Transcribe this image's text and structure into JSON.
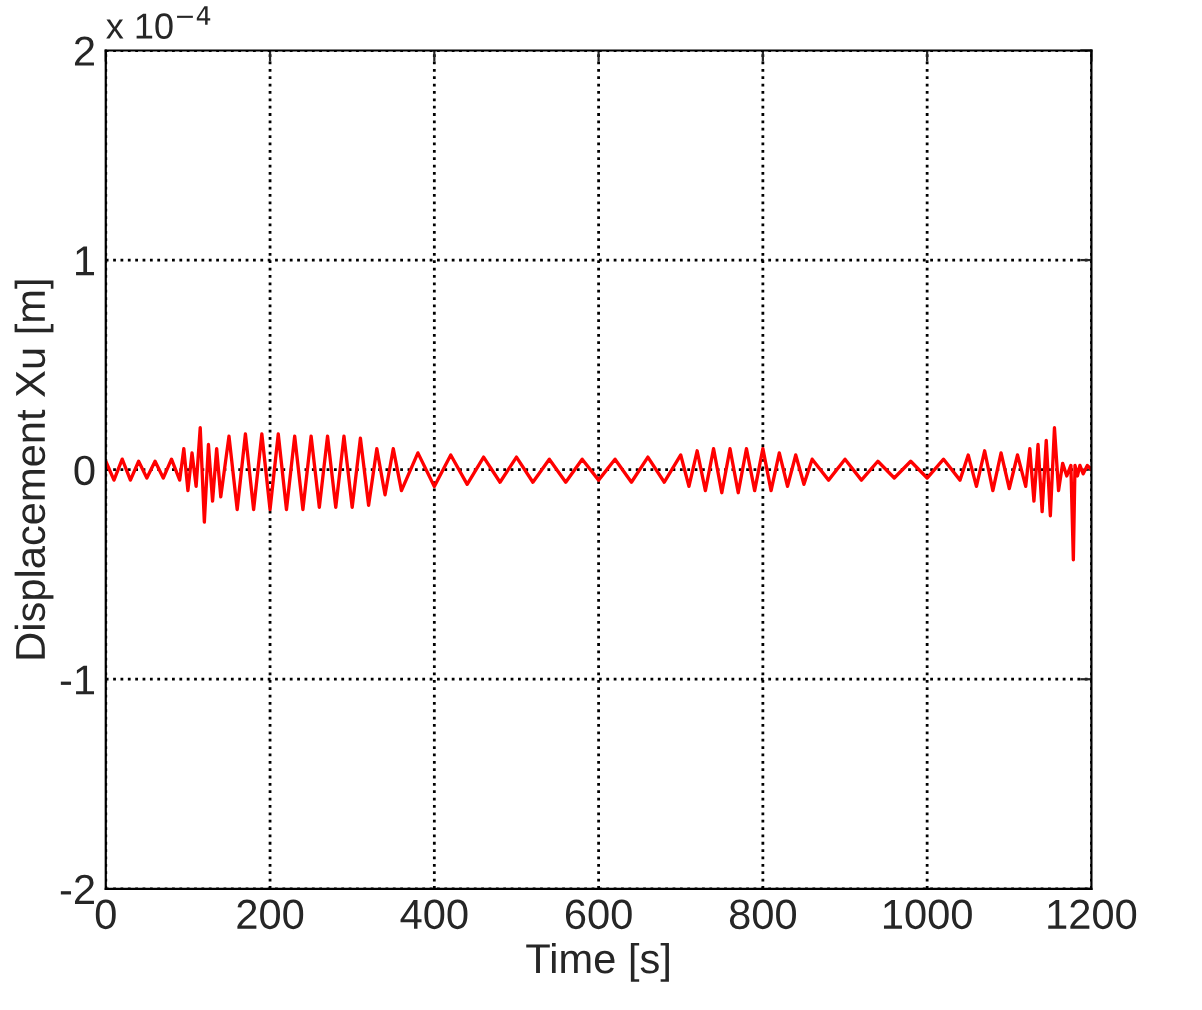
{
  "chart_data": {
    "type": "line",
    "xlabel": "Time [s]",
    "ylabel": "Displacement Xu [m]",
    "annotations": [
      "x 10$^{−4}$"
    ],
    "xlim": [
      0,
      1200
    ],
    "ylim": [
      -2,
      2
    ],
    "xticks": [
      0,
      200,
      400,
      600,
      800,
      1000,
      1200
    ],
    "yticks": [
      -2,
      -1,
      0,
      1,
      2
    ],
    "grid": true,
    "line_style": "solid",
    "marker": "none",
    "series": [
      {
        "color": "#ff0000",
        "x": [
          0,
          10,
          20,
          30,
          40,
          50,
          60,
          70,
          80,
          90,
          95,
          100,
          105,
          110,
          115,
          120,
          125,
          130,
          135,
          140,
          150,
          160,
          170,
          180,
          190,
          200,
          210,
          220,
          230,
          240,
          250,
          260,
          270,
          280,
          290,
          300,
          310,
          320,
          330,
          340,
          350,
          360,
          380,
          400,
          420,
          440,
          460,
          480,
          500,
          520,
          540,
          560,
          580,
          600,
          620,
          640,
          660,
          680,
          700,
          710,
          720,
          730,
          740,
          750,
          760,
          770,
          780,
          790,
          800,
          810,
          820,
          830,
          840,
          850,
          860,
          880,
          900,
          920,
          940,
          960,
          980,
          1000,
          1020,
          1040,
          1050,
          1060,
          1070,
          1080,
          1090,
          1100,
          1110,
          1120,
          1125,
          1130,
          1135,
          1140,
          1145,
          1150,
          1155,
          1160,
          1165,
          1170,
          1175,
          1178,
          1180,
          1183,
          1186,
          1190,
          1195,
          1200
        ],
        "values": [
          0.04,
          -0.05,
          0.05,
          -0.05,
          0.04,
          -0.04,
          0.04,
          -0.04,
          0.05,
          -0.05,
          0.1,
          -0.1,
          0.08,
          -0.08,
          0.2,
          -0.25,
          0.12,
          -0.15,
          0.1,
          -0.13,
          0.16,
          -0.19,
          0.17,
          -0.19,
          0.17,
          -0.19,
          0.17,
          -0.19,
          0.16,
          -0.19,
          0.16,
          -0.18,
          0.16,
          -0.18,
          0.16,
          -0.18,
          0.15,
          -0.17,
          0.1,
          -0.12,
          0.1,
          -0.1,
          0.08,
          -0.08,
          0.07,
          -0.07,
          0.06,
          -0.06,
          0.06,
          -0.06,
          0.05,
          -0.06,
          0.05,
          -0.05,
          0.05,
          -0.06,
          0.06,
          -0.06,
          0.07,
          -0.08,
          0.09,
          -0.1,
          0.1,
          -0.11,
          0.1,
          -0.11,
          0.1,
          -0.1,
          0.1,
          -0.1,
          0.08,
          -0.08,
          0.07,
          -0.07,
          0.05,
          -0.05,
          0.05,
          -0.05,
          0.04,
          -0.04,
          0.04,
          -0.04,
          0.05,
          -0.05,
          0.07,
          -0.08,
          0.09,
          -0.1,
          0.08,
          -0.09,
          0.07,
          -0.08,
          0.1,
          -0.15,
          0.12,
          -0.2,
          0.14,
          -0.22,
          0.2,
          -0.1,
          0.03,
          -0.03,
          0.02,
          -0.43,
          0.02,
          -0.03,
          0.02,
          -0.02,
          0.02,
          0.0
        ]
      }
    ]
  }
}
